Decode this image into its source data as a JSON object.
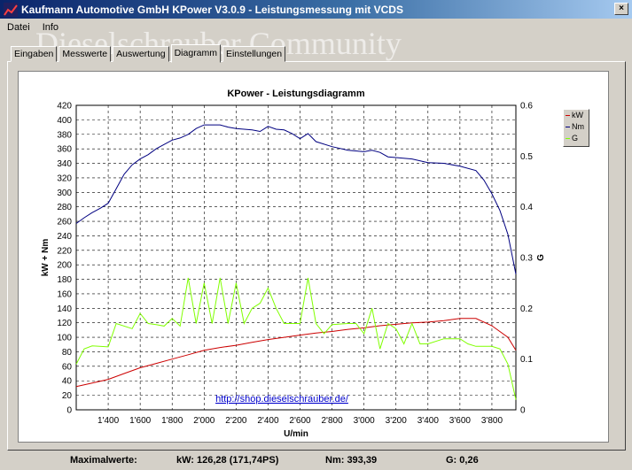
{
  "window": {
    "title": "Kaufmann Automotive GmbH  KPower V3.0.9 - Leistungsmessung mit VCDS",
    "close_label": "×"
  },
  "menu": {
    "items": [
      "Datei",
      "Info"
    ]
  },
  "watermark": "Dieselschrauber Community",
  "tabs": [
    "Eingaben",
    "Messwerte",
    "Auswertung",
    "Diagramm",
    "Einstellungen"
  ],
  "active_tab": 3,
  "statusbar": {
    "label": "Maximalwerte:",
    "kw": "kW: 126,28 (171,74PS)",
    "nm": "Nm: 393,39",
    "g": "G: 0,26"
  },
  "colors": {
    "kw": "#cc0000",
    "nm": "#000080",
    "g": "#80ff00"
  },
  "chart_data": {
    "type": "line",
    "title": "KPower - Leistungsdiagramm",
    "xlabel": "U/min",
    "ylabel": "kW + Nm",
    "y2label": "G",
    "url": "http://shop.dieselschrauber.de/",
    "xlim": [
      1200,
      3950
    ],
    "ylim": [
      0,
      420
    ],
    "y2lim": [
      0,
      0.6
    ],
    "x_ticks": [
      1400,
      1600,
      1800,
      2000,
      2200,
      2400,
      2600,
      2800,
      3000,
      3200,
      3400,
      3600,
      3800
    ],
    "x_tick_labels": [
      "1'400",
      "1'600",
      "1'800",
      "2'000",
      "2'200",
      "2'400",
      "2'600",
      "2'800",
      "3'000",
      "3'200",
      "3'400",
      "3'600",
      "3'800"
    ],
    "y_ticks": [
      0,
      20,
      40,
      60,
      80,
      100,
      120,
      140,
      160,
      180,
      200,
      220,
      240,
      260,
      280,
      300,
      320,
      340,
      360,
      380,
      400,
      420
    ],
    "y2_ticks": [
      0,
      0.1,
      0.2,
      0.3,
      0.4,
      0.5,
      0.6
    ],
    "y2_tick_labels": [
      "0",
      "0.1",
      "0.2",
      "0.3",
      "0.4",
      "0.5",
      "0.6"
    ],
    "grid": true,
    "legend_position": "top-right",
    "series": [
      {
        "name": "kW",
        "axis": "left",
        "color": "#cc0000",
        "points": [
          [
            1200,
            32
          ],
          [
            1300,
            37
          ],
          [
            1400,
            42
          ],
          [
            1500,
            50
          ],
          [
            1600,
            58
          ],
          [
            1700,
            64
          ],
          [
            1800,
            70
          ],
          [
            1900,
            76
          ],
          [
            2000,
            82
          ],
          [
            2100,
            86
          ],
          [
            2200,
            89
          ],
          [
            2300,
            93
          ],
          [
            2400,
            97
          ],
          [
            2500,
            100
          ],
          [
            2600,
            103
          ],
          [
            2700,
            106
          ],
          [
            2800,
            108
          ],
          [
            2900,
            111
          ],
          [
            3000,
            113
          ],
          [
            3100,
            116
          ],
          [
            3200,
            118
          ],
          [
            3300,
            120
          ],
          [
            3400,
            121
          ],
          [
            3500,
            123
          ],
          [
            3600,
            126
          ],
          [
            3700,
            126
          ],
          [
            3800,
            116
          ],
          [
            3900,
            100
          ],
          [
            3950,
            82
          ]
        ]
      },
      {
        "name": "Nm",
        "axis": "left",
        "color": "#000080",
        "points": [
          [
            1200,
            257
          ],
          [
            1250,
            265
          ],
          [
            1300,
            272
          ],
          [
            1350,
            278
          ],
          [
            1400,
            285
          ],
          [
            1450,
            305
          ],
          [
            1500,
            325
          ],
          [
            1550,
            338
          ],
          [
            1600,
            346
          ],
          [
            1650,
            352
          ],
          [
            1700,
            360
          ],
          [
            1750,
            366
          ],
          [
            1800,
            372
          ],
          [
            1850,
            375
          ],
          [
            1900,
            380
          ],
          [
            1950,
            388
          ],
          [
            2000,
            393
          ],
          [
            2100,
            393
          ],
          [
            2150,
            390
          ],
          [
            2200,
            388
          ],
          [
            2300,
            386
          ],
          [
            2350,
            384
          ],
          [
            2400,
            391
          ],
          [
            2450,
            387
          ],
          [
            2500,
            386
          ],
          [
            2550,
            381
          ],
          [
            2600,
            374
          ],
          [
            2650,
            381
          ],
          [
            2700,
            370
          ],
          [
            2800,
            363
          ],
          [
            2900,
            358
          ],
          [
            3000,
            356
          ],
          [
            3050,
            358
          ],
          [
            3100,
            355
          ],
          [
            3150,
            349
          ],
          [
            3200,
            348
          ],
          [
            3300,
            346
          ],
          [
            3400,
            341
          ],
          [
            3500,
            340
          ],
          [
            3600,
            336
          ],
          [
            3700,
            330
          ],
          [
            3750,
            317
          ],
          [
            3800,
            298
          ],
          [
            3850,
            275
          ],
          [
            3900,
            242
          ],
          [
            3950,
            187
          ]
        ]
      },
      {
        "name": "G",
        "axis": "right",
        "color": "#80ff00",
        "points": [
          [
            1200,
            0.09
          ],
          [
            1250,
            0.12
          ],
          [
            1300,
            0.126
          ],
          [
            1400,
            0.124
          ],
          [
            1450,
            0.17
          ],
          [
            1550,
            0.16
          ],
          [
            1600,
            0.19
          ],
          [
            1650,
            0.17
          ],
          [
            1700,
            0.168
          ],
          [
            1750,
            0.165
          ],
          [
            1800,
            0.18
          ],
          [
            1850,
            0.165
          ],
          [
            1900,
            0.26
          ],
          [
            1950,
            0.17
          ],
          [
            2000,
            0.25
          ],
          [
            2050,
            0.17
          ],
          [
            2100,
            0.26
          ],
          [
            2150,
            0.17
          ],
          [
            2200,
            0.25
          ],
          [
            2250,
            0.17
          ],
          [
            2300,
            0.2
          ],
          [
            2350,
            0.21
          ],
          [
            2400,
            0.24
          ],
          [
            2450,
            0.2
          ],
          [
            2500,
            0.17
          ],
          [
            2600,
            0.17
          ],
          [
            2650,
            0.26
          ],
          [
            2700,
            0.17
          ],
          [
            2750,
            0.15
          ],
          [
            2800,
            0.168
          ],
          [
            2900,
            0.17
          ],
          [
            2950,
            0.17
          ],
          [
            3000,
            0.15
          ],
          [
            3050,
            0.2
          ],
          [
            3100,
            0.12
          ],
          [
            3150,
            0.17
          ],
          [
            3200,
            0.16
          ],
          [
            3250,
            0.13
          ],
          [
            3300,
            0.17
          ],
          [
            3350,
            0.13
          ],
          [
            3400,
            0.13
          ],
          [
            3500,
            0.14
          ],
          [
            3600,
            0.14
          ],
          [
            3650,
            0.13
          ],
          [
            3700,
            0.125
          ],
          [
            3800,
            0.125
          ],
          [
            3850,
            0.12
          ],
          [
            3900,
            0.09
          ],
          [
            3950,
            0.02
          ]
        ]
      }
    ]
  }
}
